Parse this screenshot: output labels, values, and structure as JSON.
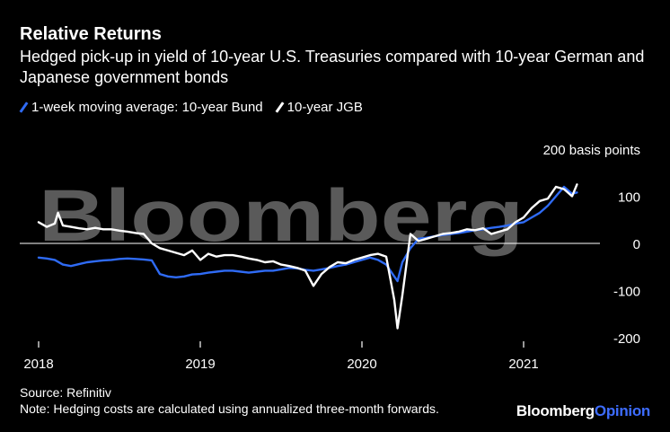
{
  "title": "Relative Returns",
  "subtitle": "Hedged pick-up in yield of 10-year U.S. Treasuries compared with 10-year German and Japanese government bonds",
  "watermark": "Bloomberg",
  "source": "Source: Refinitiv",
  "note": "Note: Hedging costs are calculated using annualized three-month forwards.",
  "brand": {
    "name": "Bloomberg",
    "suffix": "Opinion"
  },
  "colors": {
    "background": "#000000",
    "bund": "#2f6bf5",
    "jgb": "#ffffff",
    "watermark": "#5a5a5a",
    "brand_accent": "#3d6cff"
  },
  "chart_data": {
    "type": "line",
    "y_unit_label": "200 basis points",
    "ylim": [
      -210,
      200
    ],
    "yticks": [
      100,
      0,
      -100,
      -200
    ],
    "ytick_labels": [
      "100",
      "0",
      "-100",
      "-200"
    ],
    "xlim": [
      2018.0,
      2021.4
    ],
    "xticks": [
      2018,
      2019,
      2020,
      2021
    ],
    "xtick_labels": [
      "2018",
      "2019",
      "2020",
      "2021"
    ],
    "zero_line": true,
    "series": [
      {
        "name": "1-week moving average: 10-year Bund",
        "color": "#2f6bf5",
        "x": [
          2018.0,
          2018.05,
          2018.1,
          2018.15,
          2018.2,
          2018.25,
          2018.3,
          2018.35,
          2018.4,
          2018.45,
          2018.5,
          2018.55,
          2018.6,
          2018.65,
          2018.7,
          2018.75,
          2018.8,
          2018.85,
          2018.9,
          2018.95,
          2019.0,
          2019.05,
          2019.1,
          2019.15,
          2019.2,
          2019.25,
          2019.3,
          2019.35,
          2019.4,
          2019.45,
          2019.5,
          2019.55,
          2019.6,
          2019.65,
          2019.7,
          2019.75,
          2019.8,
          2019.85,
          2019.9,
          2019.95,
          2020.0,
          2020.05,
          2020.1,
          2020.15,
          2020.2,
          2020.22,
          2020.25,
          2020.3,
          2020.35,
          2020.4,
          2020.45,
          2020.5,
          2020.55,
          2020.6,
          2020.65,
          2020.7,
          2020.75,
          2020.8,
          2020.85,
          2020.9,
          2020.95,
          2021.0,
          2021.05,
          2021.1,
          2021.15,
          2021.2,
          2021.25,
          2021.3,
          2021.33
        ],
        "values": [
          -30,
          -32,
          -35,
          -45,
          -48,
          -44,
          -40,
          -38,
          -36,
          -35,
          -33,
          -32,
          -33,
          -34,
          -36,
          -65,
          -70,
          -72,
          -70,
          -66,
          -65,
          -62,
          -60,
          -58,
          -58,
          -60,
          -62,
          -60,
          -58,
          -58,
          -55,
          -52,
          -53,
          -56,
          -58,
          -55,
          -52,
          -48,
          -45,
          -40,
          -35,
          -30,
          -35,
          -45,
          -70,
          -80,
          -40,
          -10,
          10,
          12,
          15,
          18,
          20,
          22,
          25,
          28,
          30,
          33,
          35,
          38,
          42,
          45,
          55,
          65,
          80,
          100,
          120,
          105,
          108
        ]
      },
      {
        "name": "10-year JGB",
        "color": "#ffffff",
        "x": [
          2018.0,
          2018.05,
          2018.1,
          2018.12,
          2018.15,
          2018.2,
          2018.25,
          2018.3,
          2018.35,
          2018.4,
          2018.45,
          2018.5,
          2018.55,
          2018.6,
          2018.65,
          2018.7,
          2018.75,
          2018.8,
          2018.85,
          2018.9,
          2018.95,
          2019.0,
          2019.05,
          2019.1,
          2019.15,
          2019.2,
          2019.25,
          2019.3,
          2019.35,
          2019.4,
          2019.45,
          2019.5,
          2019.55,
          2019.6,
          2019.65,
          2019.7,
          2019.75,
          2019.8,
          2019.85,
          2019.9,
          2019.95,
          2020.0,
          2020.05,
          2020.1,
          2020.15,
          2020.2,
          2020.22,
          2020.25,
          2020.3,
          2020.35,
          2020.4,
          2020.45,
          2020.5,
          2020.55,
          2020.6,
          2020.65,
          2020.7,
          2020.75,
          2020.8,
          2020.85,
          2020.9,
          2020.95,
          2021.0,
          2021.05,
          2021.1,
          2021.15,
          2021.2,
          2021.25,
          2021.3,
          2021.33
        ],
        "values": [
          45,
          35,
          42,
          65,
          38,
          35,
          32,
          30,
          33,
          30,
          30,
          27,
          25,
          22,
          20,
          0,
          -10,
          -15,
          -20,
          -25,
          -15,
          -35,
          -22,
          -28,
          -25,
          -25,
          -28,
          -32,
          -35,
          -40,
          -38,
          -45,
          -48,
          -52,
          -58,
          -90,
          -65,
          -50,
          -40,
          -42,
          -35,
          -30,
          -25,
          -22,
          -28,
          -120,
          -180,
          -110,
          20,
          5,
          10,
          15,
          20,
          22,
          25,
          30,
          28,
          32,
          20,
          25,
          30,
          45,
          55,
          75,
          90,
          95,
          120,
          115,
          100,
          125
        ]
      }
    ]
  }
}
